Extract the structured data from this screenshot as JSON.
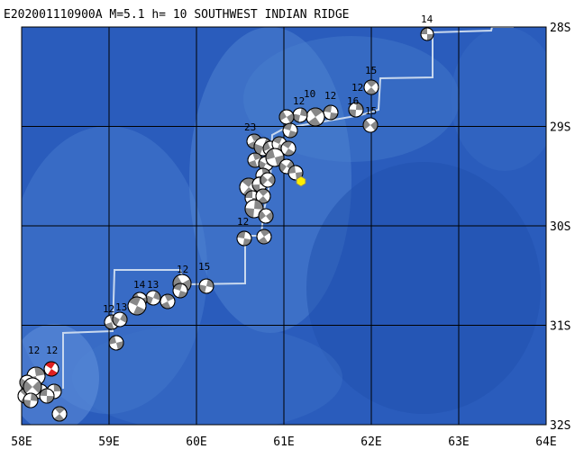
{
  "header": {
    "title": "E202001110900A  M=5.1  h= 10 SOUTHWEST INDIAN RIDGE"
  },
  "axes": {
    "longitude_labels": [
      "58E",
      "59E",
      "60E",
      "61E",
      "62E",
      "63E",
      "64E"
    ],
    "latitude_labels": [
      "28S",
      "29S",
      "30S",
      "31S",
      "32S"
    ]
  },
  "events": {
    "depth_labels": [
      "14",
      "15",
      "12",
      "16",
      "15",
      "10",
      "12",
      "12",
      "23",
      "12",
      "12",
      "15",
      "14",
      "13",
      "12",
      "13",
      "12",
      "12"
    ]
  }
}
